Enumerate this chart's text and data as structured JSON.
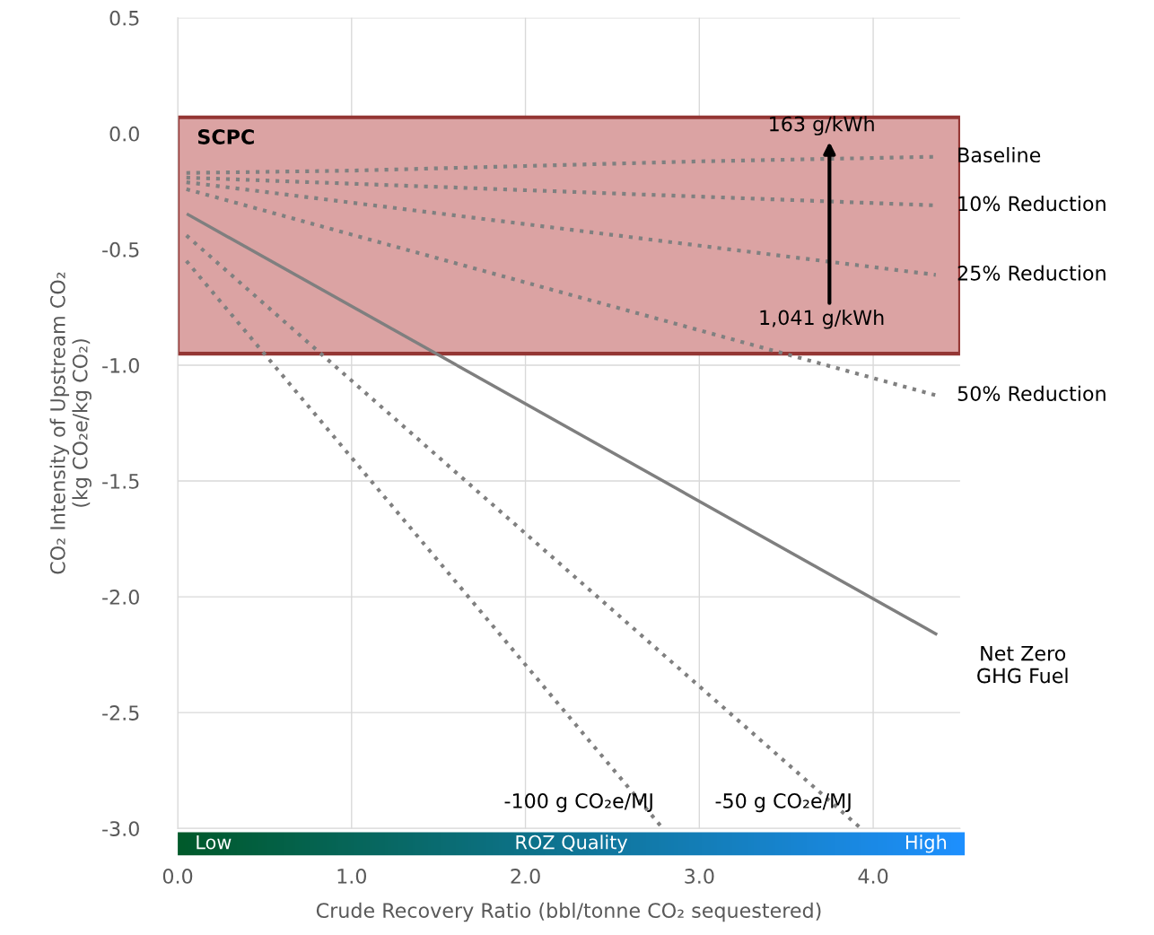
{
  "chart_data": {
    "type": "line",
    "xlabel": "Crude Recovery Ratio (bbl/tonne CO₂ sequestered)",
    "ylabel": "CO₂ Intensity of Upstream CO₂\n(kg CO₂e/kg CO₂)",
    "xlim": [
      0,
      4.5
    ],
    "ylim": [
      -3.0,
      0.5
    ],
    "xticks": [
      {
        "value": 0,
        "label": "0.0"
      },
      {
        "value": 1,
        "label": "1.0"
      },
      {
        "value": 2,
        "label": "2.0"
      },
      {
        "value": 3,
        "label": "3.0"
      },
      {
        "value": 4,
        "label": "4.0"
      }
    ],
    "yticks": [
      {
        "value": 0.5,
        "label": "0.5"
      },
      {
        "value": 0,
        "label": "0.0"
      },
      {
        "value": -0.5,
        "label": "-0.5"
      },
      {
        "value": -1.0,
        "label": "-1.0"
      },
      {
        "value": -1.5,
        "label": "-1.5"
      },
      {
        "value": -2.0,
        "label": "-2.0"
      },
      {
        "value": -2.5,
        "label": "-2.5"
      },
      {
        "value": -3.0,
        "label": "-3.0"
      }
    ],
    "grid": true,
    "legend": false,
    "series": [
      {
        "name": "Baseline",
        "color": "#808080",
        "line_style": "dotted",
        "x": [
          0.05,
          1.0,
          2.0,
          3.0,
          4.36
        ],
        "values": [
          -0.17,
          -0.16,
          -0.14,
          -0.12,
          -0.1
        ]
      },
      {
        "name": "10% Reduction",
        "color": "#808080",
        "line_style": "dotted",
        "x": [
          0.05,
          4.36
        ],
        "values": [
          -0.19,
          -0.31
        ]
      },
      {
        "name": "25% Reduction",
        "color": "#808080",
        "line_style": "dotted",
        "x": [
          0.05,
          4.36
        ],
        "values": [
          -0.21,
          -0.61
        ]
      },
      {
        "name": "50% Reduction",
        "color": "#808080",
        "line_style": "dotted",
        "x": [
          0.05,
          4.36
        ],
        "values": [
          -0.24,
          -1.13
        ]
      },
      {
        "name": "Net Zero\nGHG Fuel",
        "color": "#7f7f7f",
        "line_style": "solid",
        "x": [
          0.06,
          4.36
        ],
        "values": [
          -0.35,
          -2.16
        ]
      },
      {
        "name": "-100 g CO₂e/MJ",
        "color": "#808080",
        "line_style": "dotted",
        "x": [
          0.05,
          2.79
        ],
        "values": [
          -0.55,
          -3.0
        ]
      },
      {
        "name": "-50 g CO₂e/MJ",
        "color": "#808080",
        "line_style": "dotted",
        "x": [
          0.05,
          3.93
        ],
        "values": [
          -0.44,
          -3.0
        ]
      }
    ],
    "bands": [
      {
        "axis": "y",
        "from": -0.95,
        "to": 0.07,
        "label": "SCPC",
        "color": "#dba3a3"
      }
    ],
    "annotations": [
      "163 g/kWh",
      "1,041 g/kWh",
      "Low",
      "ROZ Quality",
      "High"
    ]
  }
}
